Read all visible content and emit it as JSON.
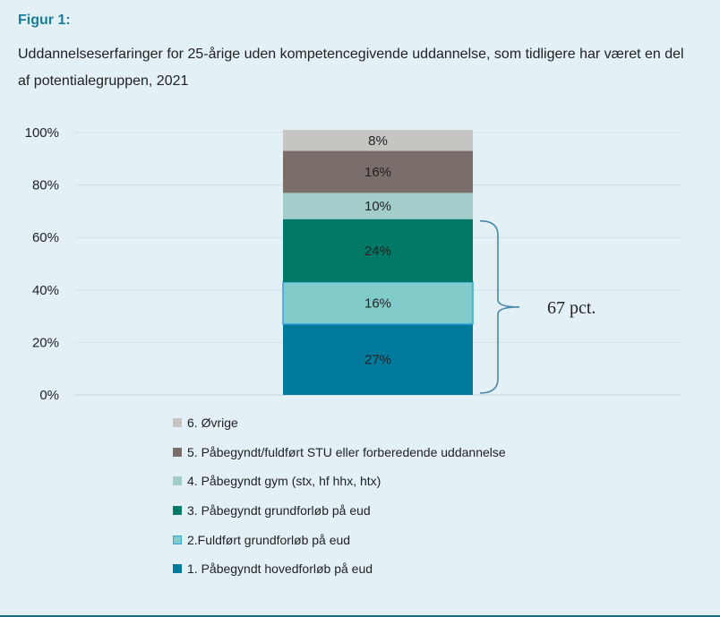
{
  "figure": {
    "label": "Figur 1:",
    "subtitle": "Uddannelseserfaringer for 25-årige uden kompetencegivende uddannelse, som tidligere har været en del af potentialegruppen, 2021"
  },
  "chart_data": {
    "type": "bar",
    "stacked": true,
    "categories": [
      ""
    ],
    "ylim": [
      0,
      100
    ],
    "y_ticks": [
      "0%",
      "20%",
      "40%",
      "60%",
      "80%",
      "100%"
    ],
    "grid": true,
    "legend_placement": "bottom",
    "series": [
      {
        "name": "1. Påbegyndt hovedforløb på eud",
        "values": [
          27
        ],
        "label": "27%",
        "color": "#007a9c"
      },
      {
        "name": "2.Fuldført grundforløb på eud",
        "values": [
          16
        ],
        "label": "16%",
        "color": "#82cbcb",
        "border": "#37a4dc"
      },
      {
        "name": "3. Påbegyndt grundforløb på eud",
        "values": [
          24
        ],
        "label": "24%",
        "color": "#007a66"
      },
      {
        "name": "4. Påbegyndt gym (stx, hf hhx, htx)",
        "values": [
          10
        ],
        "label": "10%",
        "color": "#a3cdca"
      },
      {
        "name": "5. Påbegyndt/fuldført STU eller forberedende uddannelse",
        "values": [
          16
        ],
        "label": "16%",
        "color": "#7a6e6b"
      },
      {
        "name": "6. Øvrige",
        "values": [
          8
        ],
        "label": "8%",
        "color": "#c7c5c2"
      }
    ],
    "legend_order": [
      5,
      4,
      3,
      2,
      1,
      0
    ],
    "annotation": {
      "text": "67 pct.",
      "spans_series": [
        0,
        1,
        2
      ]
    }
  }
}
